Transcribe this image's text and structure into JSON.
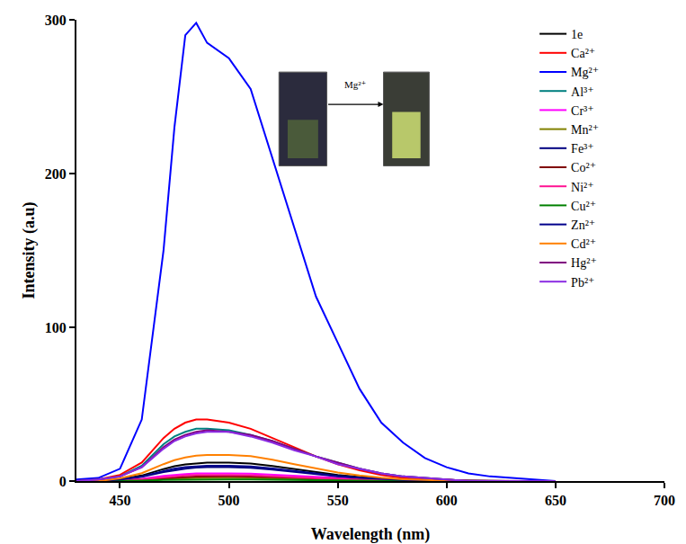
{
  "chart_data": {
    "type": "line",
    "xlabel": "Wavelength (nm)",
    "ylabel": "Intensity (a.u)",
    "xlim": [
      430,
      700
    ],
    "xticks": [
      450,
      500,
      550,
      600,
      650,
      700
    ],
    "ylim": [
      0,
      300
    ],
    "yticks": [
      0,
      100,
      200,
      300
    ],
    "grid": false,
    "legend": "upper right",
    "annotations": [
      {
        "text": "Mg²⁺",
        "x": 558,
        "y": 258
      }
    ],
    "x": [
      430,
      440,
      450,
      460,
      470,
      475,
      480,
      485,
      490,
      500,
      510,
      520,
      530,
      540,
      550,
      560,
      570,
      580,
      590,
      600,
      610,
      620,
      630,
      640,
      650
    ],
    "series": [
      {
        "name": "1e",
        "color": "#000000",
        "values": [
          0,
          0,
          1.2,
          3.6,
          7.8,
          9.6,
          10.8,
          11.6,
          12,
          12,
          11.4,
          9.8,
          7.8,
          5.8,
          4,
          2.6,
          1.6,
          0.8,
          0.5,
          0.2,
          0.1,
          0,
          0,
          0,
          0
        ]
      },
      {
        "name": "Ca²⁺",
        "color": "#ff0000",
        "values": [
          0,
          1,
          4,
          12,
          28,
          34,
          38,
          40,
          40,
          38,
          34,
          28,
          22,
          16,
          11,
          7,
          4,
          2,
          1,
          1,
          0,
          0,
          0,
          0,
          0
        ]
      },
      {
        "name": "Mg²⁺",
        "color": "#0000ff",
        "values": [
          1,
          2,
          8,
          40,
          150,
          230,
          290,
          298,
          285,
          275,
          255,
          210,
          165,
          120,
          90,
          60,
          38,
          25,
          15,
          9,
          5,
          3,
          2,
          1,
          0
        ]
      },
      {
        "name": "Al³⁺",
        "color": "#008080",
        "values": [
          0,
          1,
          3,
          10,
          24,
          29,
          32,
          34,
          34,
          33,
          30,
          26,
          21,
          16,
          12,
          8,
          5,
          3,
          2,
          1,
          0,
          0,
          0,
          0,
          0
        ]
      },
      {
        "name": "Cr³⁺",
        "color": "#ff00ff",
        "values": [
          0,
          0,
          0.5,
          1.5,
          3.3,
          4,
          4.5,
          4.9,
          5,
          5,
          4.8,
          4.1,
          3.3,
          2.4,
          1.7,
          1.1,
          0.7,
          0.4,
          0.2,
          0.1,
          0,
          0,
          0,
          0,
          0
        ]
      },
      {
        "name": "Mn²⁺",
        "color": "#808000",
        "values": [
          0,
          0,
          0.2,
          0.6,
          1.3,
          1.6,
          1.8,
          1.9,
          2,
          2,
          1.9,
          1.6,
          1.3,
          1,
          0.7,
          0.4,
          0.3,
          0.1,
          0.1,
          0,
          0,
          0,
          0,
          0,
          0
        ]
      },
      {
        "name": "Fe³⁺",
        "color": "#000080",
        "values": [
          0,
          0,
          0.9,
          2.7,
          5.9,
          7.2,
          8.1,
          8.7,
          9,
          9,
          8.6,
          7.4,
          5.9,
          4.3,
          3,
          2,
          1.2,
          0.6,
          0.4,
          0.2,
          0.1,
          0,
          0,
          0,
          0
        ]
      },
      {
        "name": "Co²⁺",
        "color": "#800000",
        "values": [
          0,
          0,
          0.3,
          0.9,
          2,
          2.4,
          2.7,
          2.9,
          3,
          3,
          2.9,
          2.5,
          2,
          1.4,
          1,
          0.7,
          0.4,
          0.2,
          0.1,
          0,
          0,
          0,
          0,
          0,
          0
        ]
      },
      {
        "name": "Ni²⁺",
        "color": "#ff1493",
        "values": [
          0,
          0,
          0.4,
          1.2,
          2.6,
          3.2,
          3.6,
          3.9,
          4,
          4,
          3.8,
          3.3,
          2.6,
          1.9,
          1.3,
          0.9,
          0.5,
          0.3,
          0.2,
          0.1,
          0,
          0,
          0,
          0,
          0
        ]
      },
      {
        "name": "Cu²⁺",
        "color": "#008000",
        "values": [
          0,
          0,
          0.1,
          0.3,
          0.7,
          0.8,
          0.9,
          1,
          1,
          1,
          1,
          0.8,
          0.7,
          0.5,
          0.3,
          0.2,
          0.1,
          0.1,
          0,
          0,
          0,
          0,
          0,
          0,
          0
        ]
      },
      {
        "name": "Zn²⁺",
        "color": "#00008b",
        "values": [
          0,
          0,
          1,
          3,
          6.5,
          8,
          9,
          9.7,
          10,
          10,
          9.5,
          8.2,
          6.5,
          4.8,
          3.3,
          2.2,
          1.3,
          0.7,
          0.4,
          0.2,
          0.1,
          0,
          0,
          0,
          0
        ]
      },
      {
        "name": "Cd²⁺",
        "color": "#ff8000",
        "values": [
          0,
          0,
          1.7,
          5.1,
          11,
          13.6,
          15.3,
          16.5,
          17,
          17,
          16.2,
          13.9,
          11,
          8.2,
          5.6,
          3.7,
          2.2,
          1.2,
          0.7,
          0.3,
          0.2,
          0,
          0,
          0,
          0
        ]
      },
      {
        "name": "Hg²⁺",
        "color": "#800080",
        "values": [
          0,
          1,
          3,
          9,
          22,
          27,
          30,
          32,
          33,
          32,
          30,
          26,
          21,
          16,
          12,
          8,
          5,
          3,
          2,
          1,
          0,
          0,
          0,
          0,
          0
        ]
      },
      {
        "name": "Pb²⁺",
        "color": "#8a2be2",
        "values": [
          0,
          1,
          3,
          9,
          21,
          26,
          29,
          31,
          32,
          32,
          29,
          25,
          20,
          16,
          11,
          8,
          5,
          3,
          2,
          1,
          0,
          0,
          0,
          0,
          0
        ]
      }
    ]
  }
}
